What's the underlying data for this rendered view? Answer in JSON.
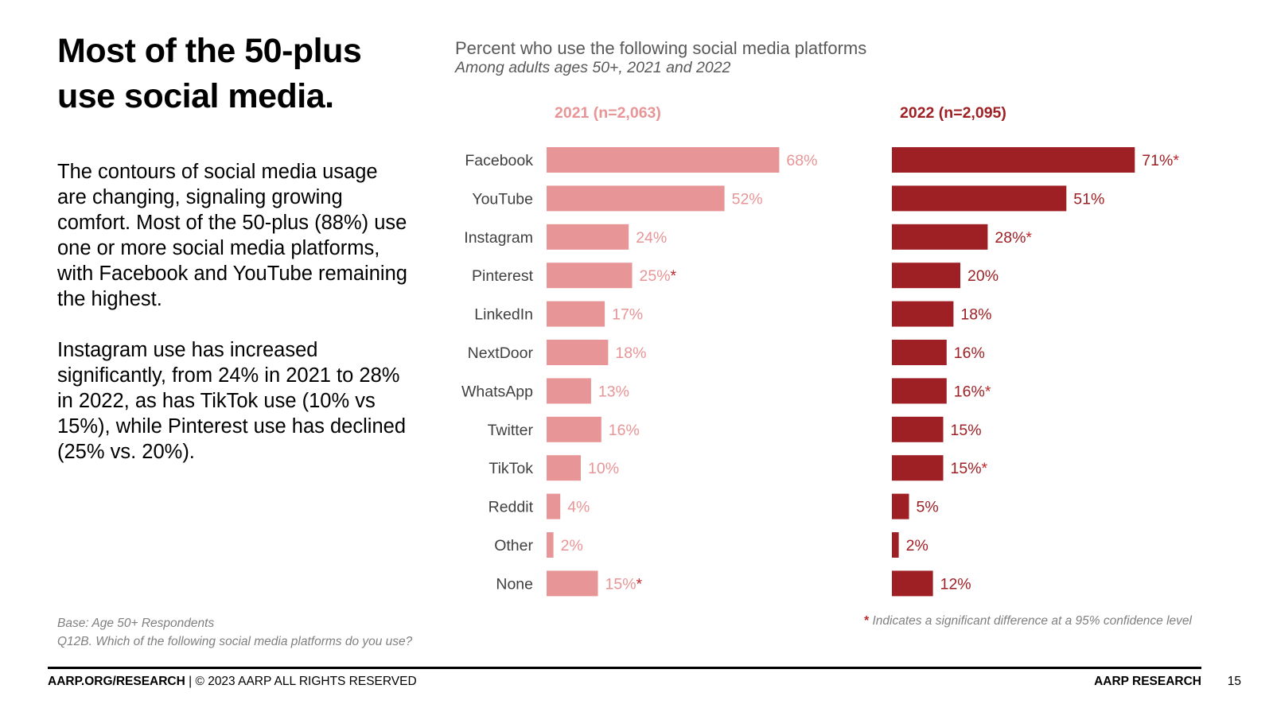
{
  "slide": {
    "title": "Most of the 50-plus use social media.",
    "paragraphs": [
      "The contours of social media usage are changing, signaling growing comfort. Most of the 50-plus (88%) use one or more social media platforms, with Facebook and YouTube remaining the highest.",
      "Instagram use has increased significantly, from 24% in 2021 to 28% in 2022, as has TikTok use (10% vs 15%), while Pinterest use has declined (25% vs. 20%)."
    ],
    "base_note": "Base: Age 50+ Respondents",
    "question_note": "Q12B. Which of the following social media platforms do you use?",
    "significance_star": "*",
    "significance_note": " Indicates a significant difference at a 95% confidence level",
    "footer_left_bold": "AARP.ORG/RESEARCH",
    "footer_left_rest": " | © 2023 AARP ALL RIGHTS RESERVED",
    "footer_right": "AARP RESEARCH",
    "page_number": "15"
  },
  "chart_data": {
    "type": "bar",
    "orientation": "horizontal",
    "title": "Percent who use the following social media platforms",
    "subtitle": "Among adults ages 50+, 2021 and 2022",
    "categories": [
      "Facebook",
      "YouTube",
      "Instagram",
      "Pinterest",
      "LinkedIn",
      "NextDoor",
      "WhatsApp",
      "Twitter",
      "TikTok",
      "Reddit",
      "Other",
      "None"
    ],
    "series": [
      {
        "name": "2021 (n=2,063)",
        "color": "#e89597",
        "values": [
          68,
          52,
          24,
          25,
          17,
          18,
          13,
          16,
          10,
          4,
          2,
          15
        ],
        "significant": [
          false,
          false,
          false,
          true,
          false,
          false,
          false,
          false,
          false,
          false,
          false,
          true
        ]
      },
      {
        "name": "2022 (n=2,095)",
        "color": "#9e1f24",
        "values": [
          71,
          51,
          28,
          20,
          18,
          16,
          16,
          15,
          15,
          5,
          2,
          12
        ],
        "significant": [
          true,
          false,
          true,
          false,
          false,
          false,
          true,
          false,
          true,
          false,
          false,
          false
        ]
      }
    ],
    "value_suffix": "%",
    "xlim": [
      0,
      100
    ],
    "star_color": "#c0272d",
    "legend": "above each panel",
    "grid": false
  }
}
